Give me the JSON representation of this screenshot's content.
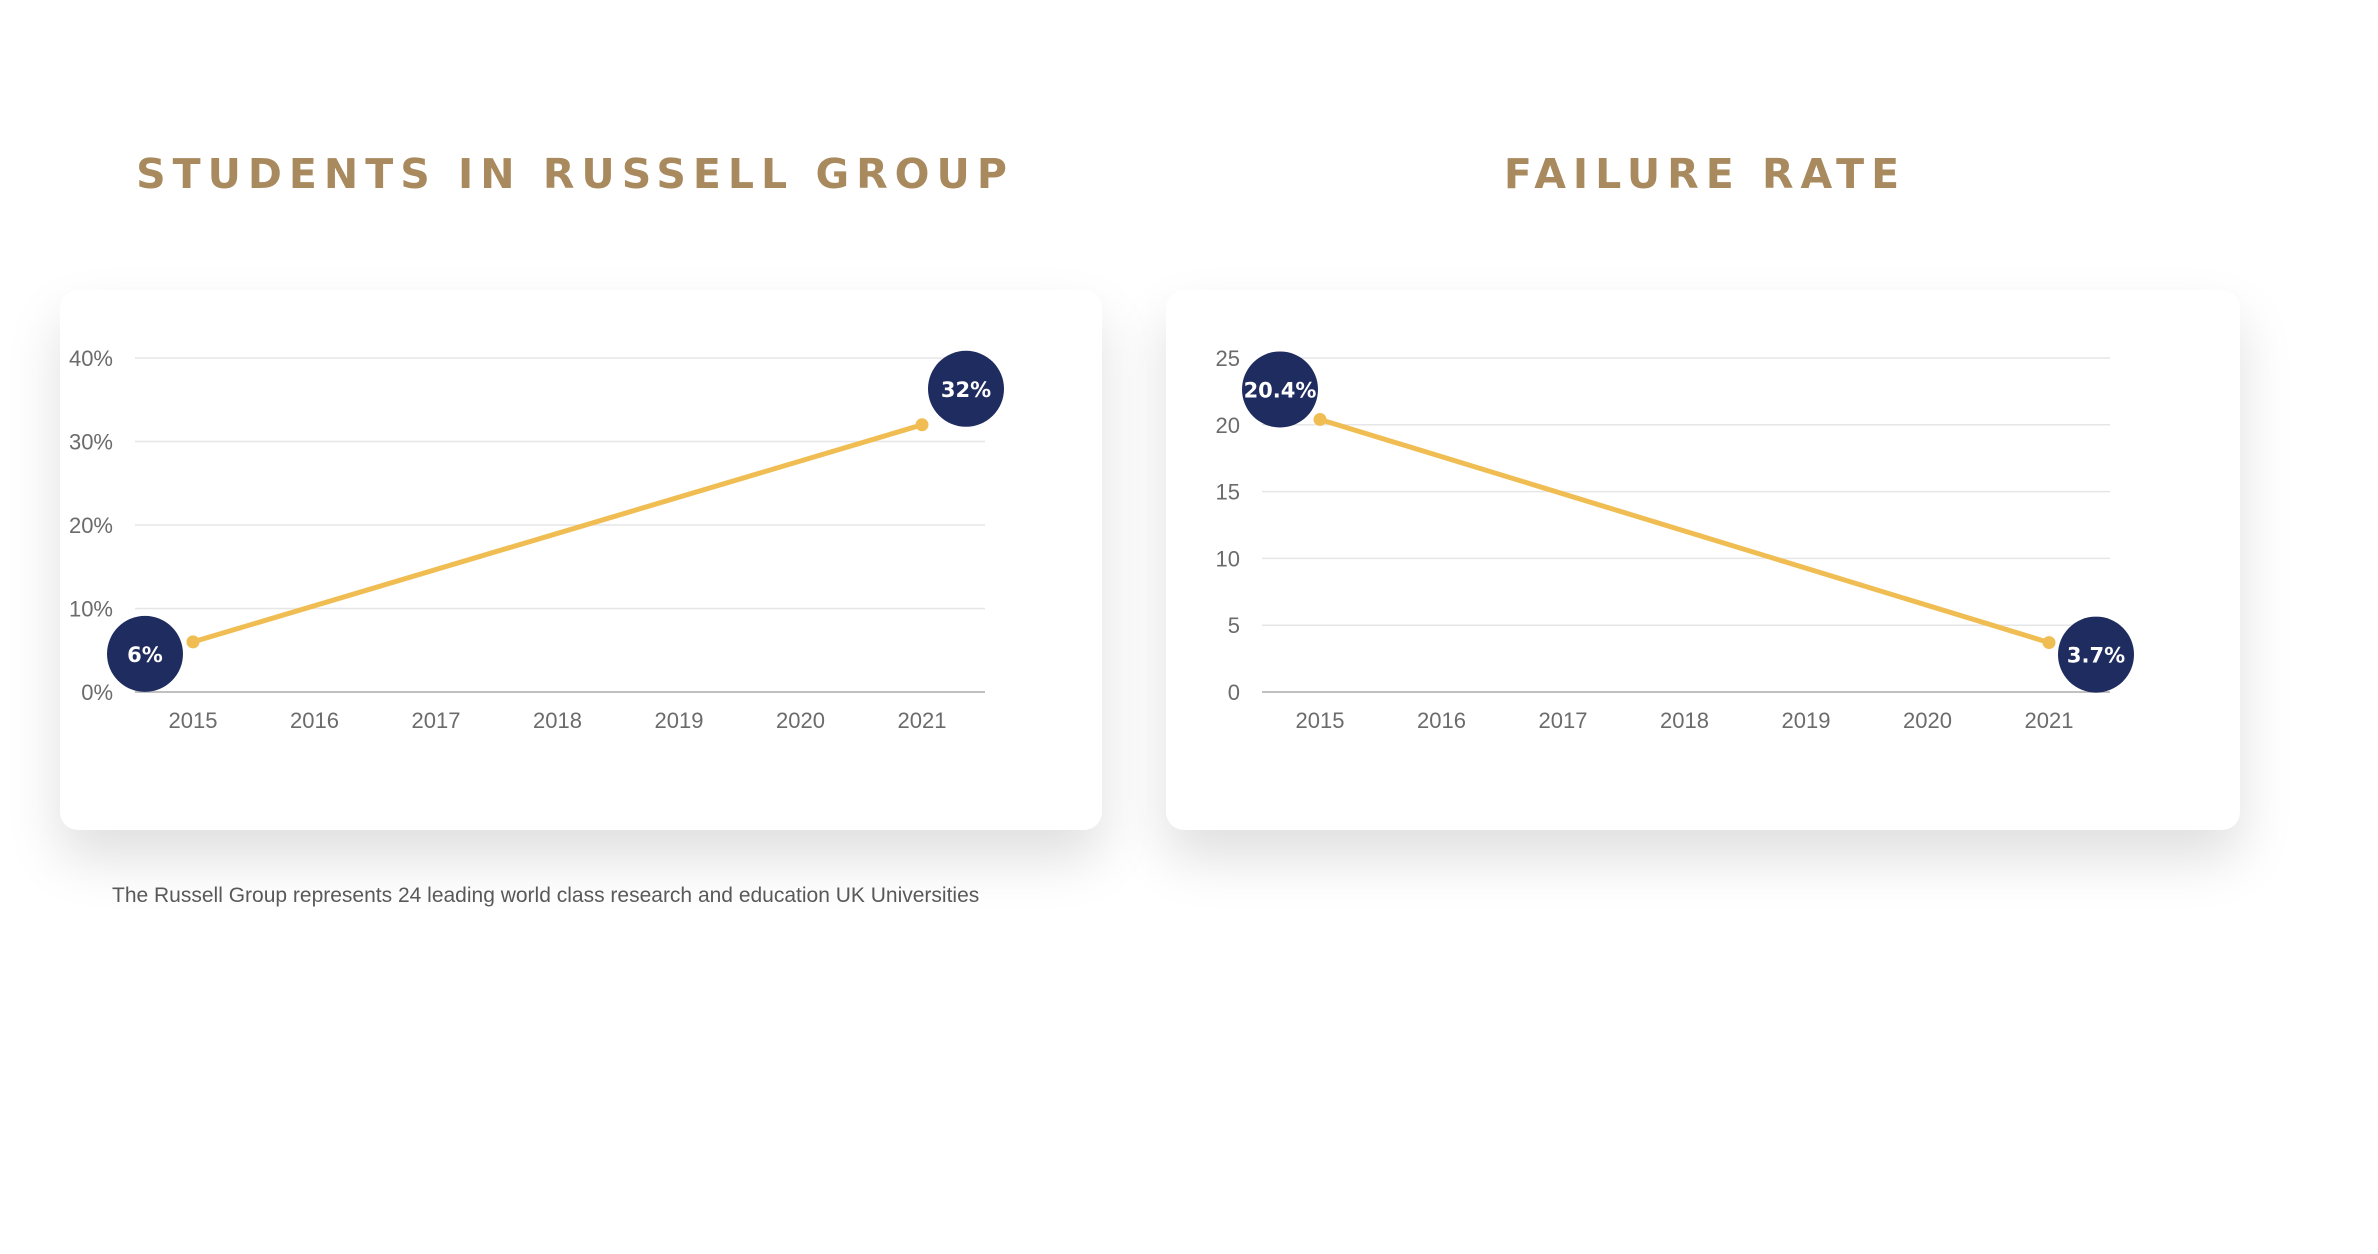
{
  "colors": {
    "title": "#a98a5e",
    "line": "#f0bd52",
    "bubble": "#1f2c5f",
    "grid": "#e6e6e6",
    "axis": "#b8b8b8",
    "tick_text": "#6b6b6b"
  },
  "footnote": "The Russell Group represents 24 leading world class research and education UK Universities",
  "chart_data": [
    {
      "type": "line",
      "title": "STUDENTS IN RUSSELL GROUP",
      "categories": [
        "2015",
        "2016",
        "2017",
        "2018",
        "2019",
        "2020",
        "2021"
      ],
      "x": [
        2015,
        2021
      ],
      "values": [
        6,
        32
      ],
      "ylim": [
        0,
        40
      ],
      "yticks": [
        0,
        10,
        20,
        30,
        40
      ],
      "ytick_labels": [
        "0%",
        "10%",
        "20%",
        "30%",
        "40%"
      ],
      "data_labels": [
        "6%",
        "32%"
      ],
      "grid": true,
      "legend": "none"
    },
    {
      "type": "line",
      "title": "FAILURE RATE",
      "categories": [
        "2015",
        "2016",
        "2017",
        "2018",
        "2019",
        "2020",
        "2021"
      ],
      "x": [
        2015,
        2021
      ],
      "values": [
        20.4,
        3.7
      ],
      "ylim": [
        0,
        25
      ],
      "yticks": [
        0,
        5,
        10,
        15,
        20,
        25
      ],
      "ytick_labels": [
        "0",
        "5",
        "10",
        "15",
        "20",
        "25"
      ],
      "data_labels": [
        "20.4%",
        "3.7%"
      ],
      "grid": true,
      "legend": "none"
    }
  ]
}
